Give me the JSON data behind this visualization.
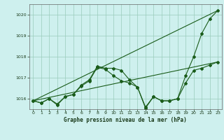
{
  "title": "Graphe pression niveau de la mer (hPa)",
  "bg_color": "#cef0ee",
  "grid_color": "#99ccbb",
  "line_color": "#1a5c1a",
  "ylim": [
    1015.5,
    1020.5
  ],
  "xlim": [
    -0.5,
    23.5
  ],
  "xticks": [
    0,
    1,
    2,
    3,
    4,
    5,
    6,
    7,
    8,
    9,
    10,
    11,
    12,
    13,
    14,
    15,
    16,
    17,
    18,
    19,
    20,
    21,
    22,
    23
  ],
  "yticks": [
    1016,
    1017,
    1018,
    1019,
    1020
  ],
  "line1_x": [
    0,
    1,
    2,
    3,
    4,
    5,
    6,
    7,
    8,
    9,
    10,
    11,
    12,
    13,
    14,
    15,
    16,
    17,
    18,
    19,
    20,
    21,
    22,
    23
  ],
  "line1_y": [
    1015.9,
    1015.8,
    1016.0,
    1015.7,
    1016.1,
    1016.2,
    1016.65,
    1016.9,
    1017.55,
    1017.45,
    1017.45,
    1017.35,
    1016.9,
    1016.55,
    1015.6,
    1016.1,
    1015.9,
    1015.9,
    1016.0,
    1017.1,
    1018.0,
    1019.1,
    1019.8,
    1020.2
  ],
  "line2_x": [
    0,
    1,
    2,
    3,
    4,
    5,
    6,
    7,
    8,
    9,
    10,
    11,
    12,
    13,
    14,
    15,
    16,
    17,
    18,
    19,
    20,
    21,
    22,
    23
  ],
  "line2_y": [
    1015.9,
    1015.8,
    1016.0,
    1015.75,
    1016.1,
    1016.2,
    1016.6,
    1016.85,
    1017.5,
    1017.4,
    1017.1,
    1016.85,
    1016.75,
    1016.55,
    1015.55,
    1016.1,
    1015.9,
    1015.9,
    1016.0,
    1016.75,
    1017.35,
    1017.45,
    1017.6,
    1017.75
  ],
  "line3_x": [
    0,
    23
  ],
  "line3_y": [
    1015.9,
    1020.2
  ],
  "line4_x": [
    0,
    23
  ],
  "line4_y": [
    1015.9,
    1017.75
  ]
}
